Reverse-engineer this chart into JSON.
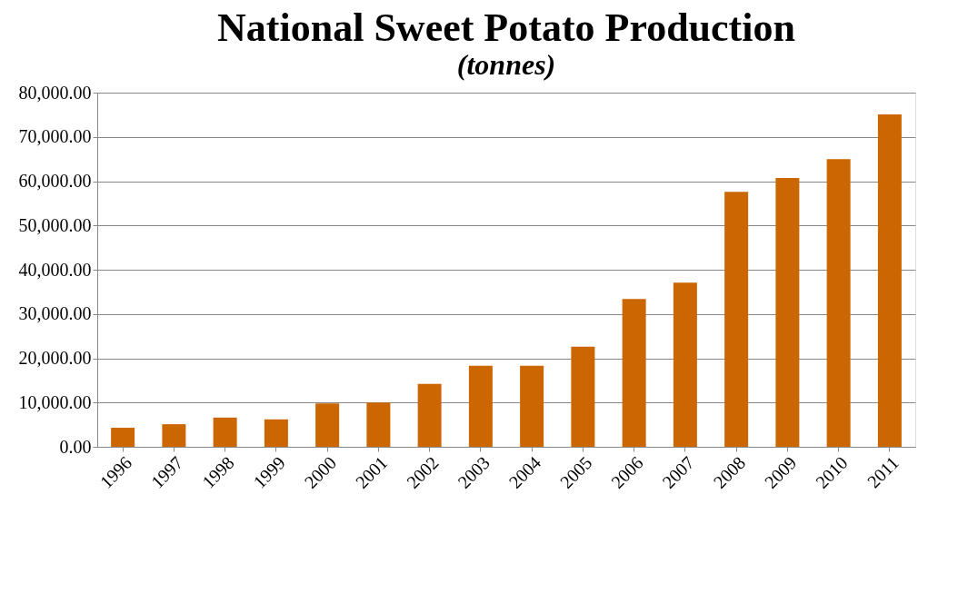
{
  "chart_data": {
    "type": "bar",
    "title": "National Sweet Potato Production",
    "subtitle": "(tonnes)",
    "categories": [
      "1996",
      "1997",
      "1998",
      "1999",
      "2000",
      "2001",
      "2002",
      "2003",
      "2004",
      "2005",
      "2006",
      "2007",
      "2008",
      "2009",
      "2010",
      "2011"
    ],
    "values": [
      4300,
      5100,
      6600,
      6200,
      9800,
      10000,
      14200,
      18300,
      18300,
      22600,
      33400,
      37100,
      57600,
      60700,
      65000,
      75100
    ],
    "color": "#cc6600",
    "ylim": [
      0,
      80000
    ],
    "yticks": [
      {
        "value": 0,
        "label": "0.00"
      },
      {
        "value": 10000,
        "label": "10,000.00"
      },
      {
        "value": 20000,
        "label": "20,000.00"
      },
      {
        "value": 30000,
        "label": "30,000.00"
      },
      {
        "value": 40000,
        "label": "40,000.00"
      },
      {
        "value": 50000,
        "label": "50,000.00"
      },
      {
        "value": 60000,
        "label": "60,000.00"
      },
      {
        "value": 70000,
        "label": "70,000.00"
      },
      {
        "value": 80000,
        "label": "80,000.00"
      }
    ],
    "grid": "y"
  }
}
